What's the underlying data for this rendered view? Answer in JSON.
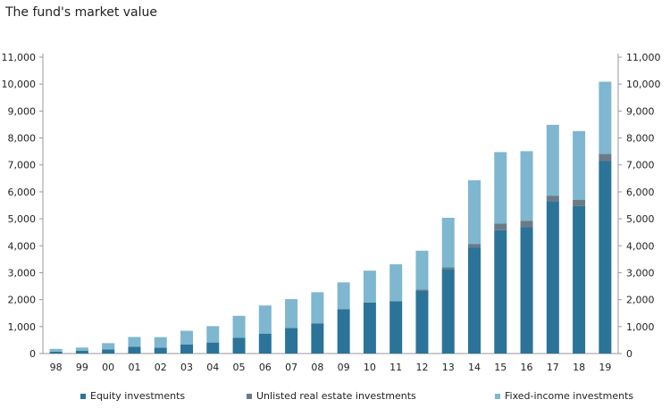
{
  "chart_data": {
    "type": "bar",
    "stacked": true,
    "title": "The fund's market value",
    "categories": [
      "98",
      "99",
      "00",
      "01",
      "02",
      "03",
      "04",
      "05",
      "06",
      "07",
      "08",
      "09",
      "10",
      "11",
      "12",
      "13",
      "14",
      "15",
      "16",
      "17",
      "18",
      "19"
    ],
    "series": [
      {
        "name": "Equity investments",
        "color": "#2b7399",
        "values": [
          70,
          100,
          150,
          250,
          220,
          340,
          410,
          580,
          740,
          950,
          1120,
          1640,
          1890,
          1940,
          2340,
          3140,
          3940,
          4580,
          4690,
          5660,
          5470,
          7140
        ]
      },
      {
        "name": "Unlisted real estate investments",
        "color": "#6b7b86",
        "values": [
          0,
          0,
          0,
          0,
          0,
          0,
          0,
          0,
          0,
          0,
          0,
          0,
          0,
          0,
          30,
          60,
          130,
          240,
          240,
          200,
          240,
          270
        ]
      },
      {
        "name": "Fixed-income investments",
        "color": "#7eb7cf",
        "values": [
          102,
          122,
          236,
          364,
          389,
          505,
          606,
          819,
          1044,
          1069,
          1155,
          1000,
          1187,
          1372,
          1446,
          1838,
          2361,
          2655,
          2580,
          2628,
          2546,
          2678
        ]
      }
    ],
    "yticks": [
      "0",
      "1,000",
      "2,000",
      "3,000",
      "4,000",
      "5,000",
      "6,000",
      "7,000",
      "8,000",
      "9,000",
      "10,000",
      "11,000"
    ],
    "ylim": [
      0,
      11000
    ],
    "y_axis_both_sides": true,
    "grid": false,
    "legend_position": "bottom"
  }
}
